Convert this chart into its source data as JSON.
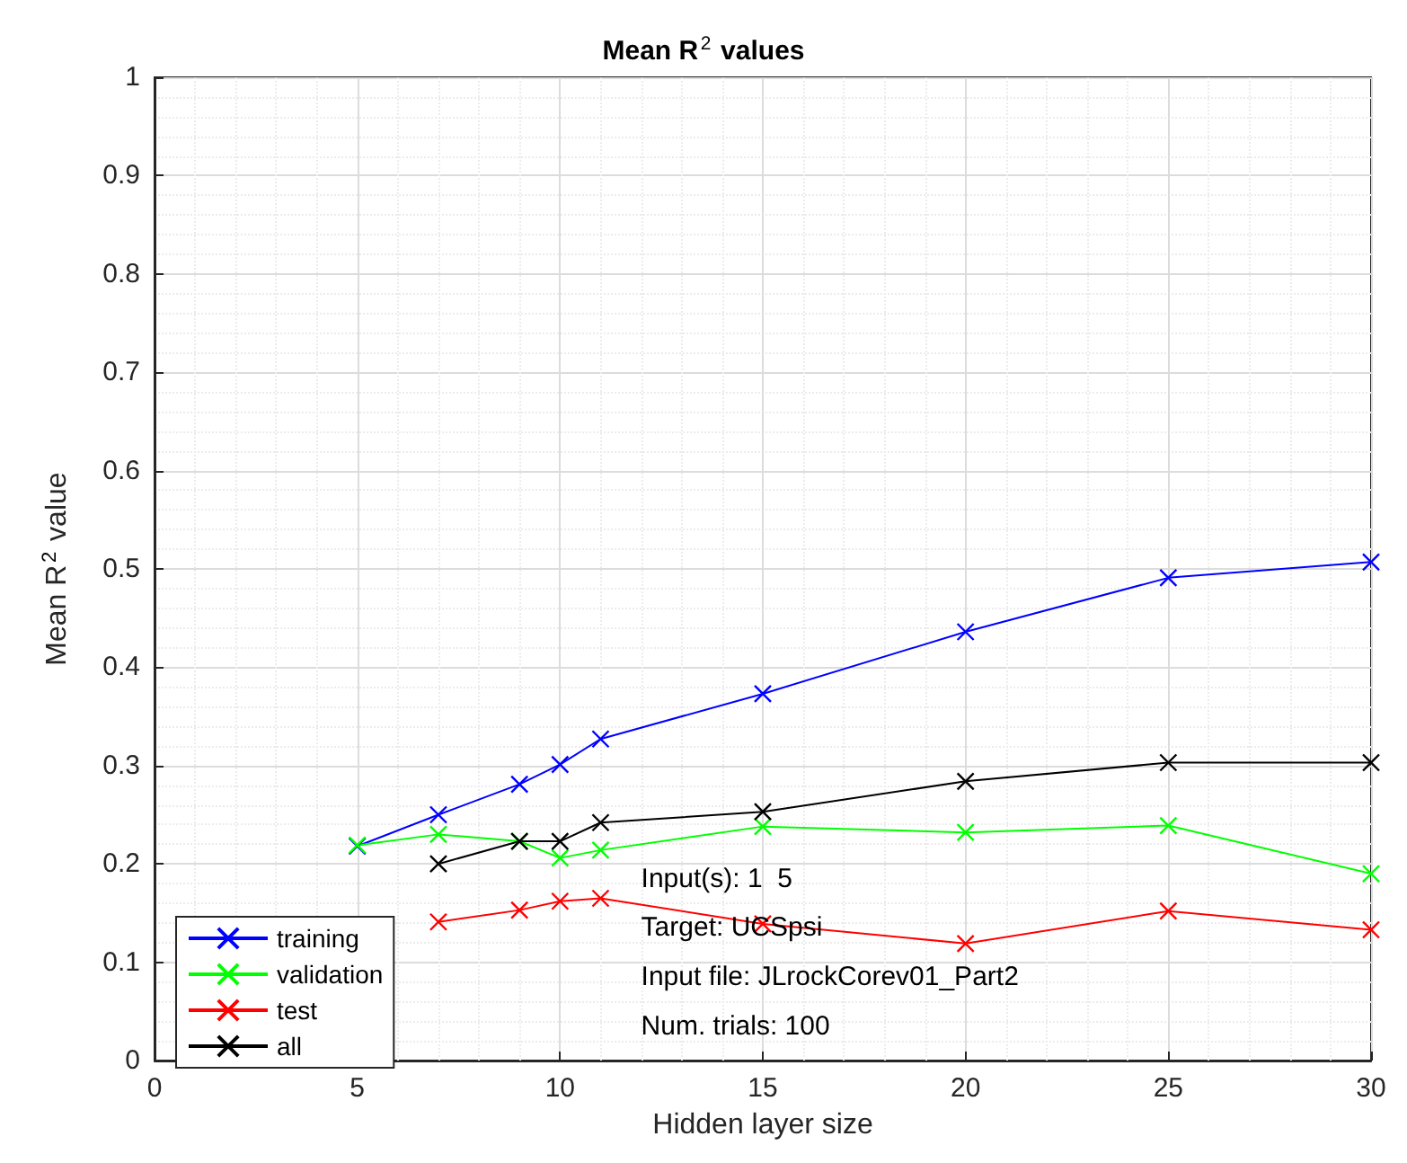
{
  "chart_data": {
    "type": "line",
    "title": "Mean R$^{2}$ values",
    "xlabel": "Hidden layer size",
    "ylabel": "Mean R$^{2}$ value",
    "x": [
      5,
      7,
      9,
      10,
      11,
      15,
      20,
      25,
      30
    ],
    "series": [
      {
        "name": "training",
        "color": "#0000ff",
        "values": [
          0.218,
          0.25,
          0.281,
          0.301,
          0.327,
          0.373,
          0.436,
          0.491,
          0.507
        ]
      },
      {
        "name": "validation",
        "color": "#00ff00",
        "values": [
          0.219,
          0.23,
          0.223,
          0.206,
          0.214,
          0.238,
          0.232,
          0.239,
          0.19
        ]
      },
      {
        "name": "test",
        "color": "#ff0000",
        "values": [
          null,
          0.141,
          0.153,
          0.162,
          0.165,
          0.139,
          0.119,
          0.152,
          0.133
        ]
      },
      {
        "name": "all",
        "color": "#000000",
        "values": [
          null,
          0.2,
          0.223,
          0.223,
          0.242,
          0.253,
          0.284,
          0.303,
          0.303
        ]
      }
    ],
    "xlim": [
      0,
      30
    ],
    "xticks": [
      0,
      5,
      10,
      15,
      20,
      25,
      30
    ],
    "ylim": [
      0,
      1
    ],
    "yticks": [
      0,
      0.1,
      0.2,
      0.3,
      0.4,
      0.5,
      0.6,
      0.7,
      0.8,
      0.9,
      1
    ],
    "annotations": [
      "Input(s): 1  5",
      "Target: UCSpsi",
      "Input file: JLrockCorev01_Part2",
      "Num. trials: 100"
    ],
    "grid": true,
    "legend": "bottom left",
    "marker": "cross",
    "line_style": "solid"
  }
}
